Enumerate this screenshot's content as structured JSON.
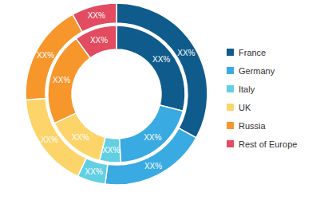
{
  "chart_data": {
    "type": "donut",
    "categories": [
      "France",
      "Germany",
      "Italy",
      "UK",
      "Russia",
      "Rest of Europe"
    ],
    "colors": [
      "#0f5b8c",
      "#3aaae2",
      "#62cfe3",
      "#fcd469",
      "#f7962a",
      "#e34b60"
    ],
    "series": [
      {
        "values": [
          33,
          19,
          5,
          17,
          18,
          8
        ],
        "value_labels": [
          "XX%",
          "XX%",
          "XX%",
          "XX%",
          "XX%",
          "XX%"
        ]
      },
      {
        "values": [
          29,
          20,
          5,
          14,
          22,
          10
        ],
        "value_labels": [
          "XX%",
          "XX%",
          "XX%",
          "XX%",
          "XX%",
          "XX%"
        ]
      }
    ],
    "data_labels": true,
    "legend": "right"
  }
}
